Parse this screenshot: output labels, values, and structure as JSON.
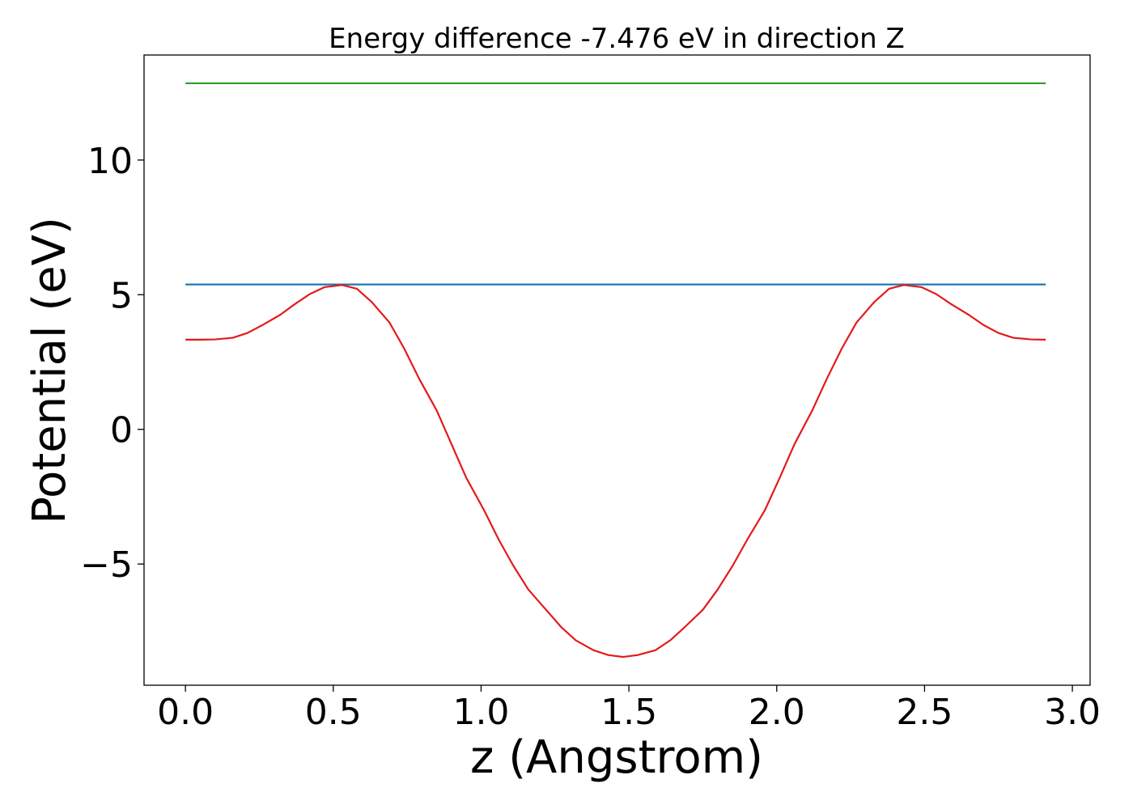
{
  "chart_data": {
    "type": "line",
    "title": "Energy difference -7.476 eV in direction Z",
    "xlabel": "z (Angstrom)",
    "ylabel": "Potential (eV)",
    "xlim": [
      -0.14,
      3.06
    ],
    "ylim": [
      -9.5,
      13.9
    ],
    "x_ticks": [
      0.0,
      0.5,
      1.0,
      1.5,
      2.0,
      2.5,
      3.0
    ],
    "x_tick_labels": [
      "0.0",
      "0.5",
      "1.0",
      "1.5",
      "2.0",
      "2.5",
      "3.0"
    ],
    "y_ticks": [
      -5,
      0,
      5,
      10
    ],
    "y_tick_labels": [
      "−5",
      "0",
      "5",
      "10"
    ],
    "grid": false,
    "legend": "none",
    "series": [
      {
        "color": "#2ca02c",
        "x": [
          0.0,
          2.91
        ],
        "y": [
          12.85,
          12.85
        ]
      },
      {
        "color": "#1f77b4",
        "x": [
          0.0,
          2.91
        ],
        "y": [
          5.38,
          5.38
        ]
      },
      {
        "color": "#e31a1c",
        "x": [
          0.0,
          0.05,
          0.1,
          0.16,
          0.21,
          0.26,
          0.32,
          0.37,
          0.42,
          0.47,
          0.53,
          0.58,
          0.63,
          0.69,
          0.74,
          0.79,
          0.85,
          0.9,
          0.95,
          1.01,
          1.06,
          1.11,
          1.16,
          1.22,
          1.27,
          1.32,
          1.38,
          1.43,
          1.48,
          1.53,
          1.59,
          1.64,
          1.69,
          1.75,
          1.8,
          1.85,
          1.9,
          1.96,
          2.01,
          2.06,
          2.12,
          2.17,
          2.22,
          2.27,
          2.33,
          2.38,
          2.43,
          2.49,
          2.54,
          2.59,
          2.65,
          2.7,
          2.75,
          2.8,
          2.86,
          2.91
        ],
        "y": [
          3.33,
          3.33,
          3.34,
          3.4,
          3.58,
          3.87,
          4.25,
          4.65,
          5.02,
          5.28,
          5.36,
          5.22,
          4.73,
          3.97,
          3.0,
          1.89,
          0.7,
          -0.55,
          -1.8,
          -3.0,
          -4.1,
          -5.08,
          -5.95,
          -6.7,
          -7.33,
          -7.83,
          -8.2,
          -8.38,
          -8.45,
          -8.38,
          -8.2,
          -7.83,
          -7.33,
          -6.7,
          -5.95,
          -5.08,
          -4.1,
          -3.0,
          -1.8,
          -0.55,
          0.7,
          1.89,
          3.0,
          3.97,
          4.73,
          5.22,
          5.36,
          5.28,
          5.02,
          4.65,
          4.25,
          3.87,
          3.58,
          3.4,
          3.34,
          3.33
        ]
      }
    ]
  }
}
